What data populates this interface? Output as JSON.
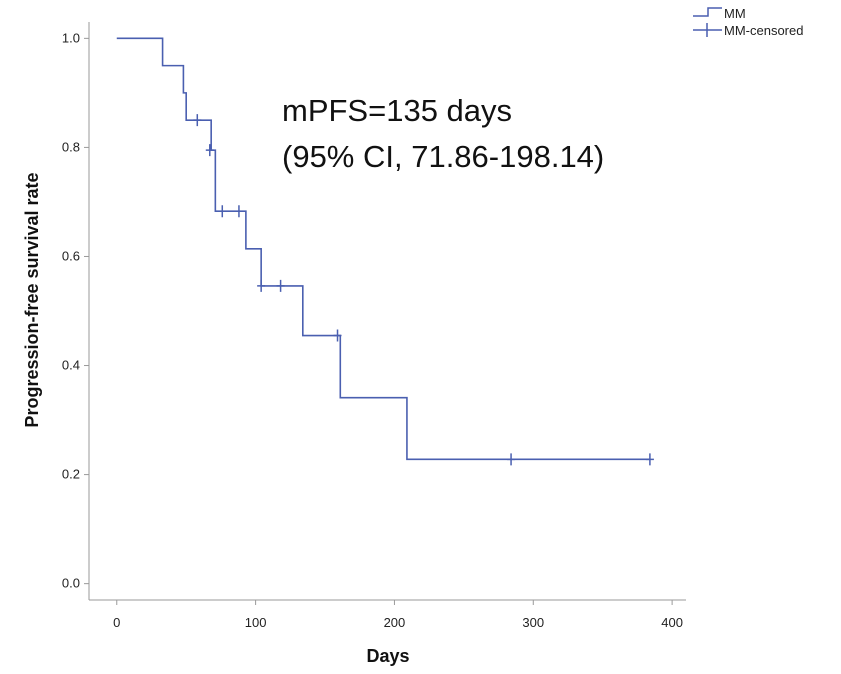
{
  "chart_data": {
    "type": "line",
    "title": "",
    "xlabel": "Days",
    "ylabel": "Progression-free survival rate",
    "xlim": [
      -20,
      410
    ],
    "ylim": [
      -0.03,
      1.03
    ],
    "xticks": [
      0,
      100,
      200,
      300,
      400
    ],
    "yticks": [
      0.0,
      0.2,
      0.4,
      0.6,
      0.8,
      1.0
    ],
    "ytick_labels": [
      "0.0",
      "0.2",
      "0.4",
      "0.6",
      "0.8",
      "1.0"
    ],
    "grid": false,
    "legend_position": "top-right",
    "legend": [
      "MM",
      "MM-censored"
    ],
    "annotation": [
      "mPFS=135 days",
      "(95% CI, 71.86-198.14)"
    ],
    "series": [
      {
        "name": "MM",
        "step_points": [
          {
            "x": 0,
            "y": 1.0
          },
          {
            "x": 33,
            "y": 0.95
          },
          {
            "x": 48,
            "y": 0.9
          },
          {
            "x": 50,
            "y": 0.85
          },
          {
            "x": 68,
            "y": 0.795
          },
          {
            "x": 71,
            "y": 0.683
          },
          {
            "x": 93,
            "y": 0.614
          },
          {
            "x": 104,
            "y": 0.546
          },
          {
            "x": 134,
            "y": 0.455
          },
          {
            "x": 161,
            "y": 0.341
          },
          {
            "x": 209,
            "y": 0.228
          },
          {
            "x": 384,
            "y": 0.228
          }
        ]
      },
      {
        "name": "MM-censored",
        "points": [
          {
            "x": 58,
            "y": 0.85
          },
          {
            "x": 67,
            "y": 0.795
          },
          {
            "x": 76,
            "y": 0.683
          },
          {
            "x": 88,
            "y": 0.683
          },
          {
            "x": 104,
            "y": 0.546
          },
          {
            "x": 118,
            "y": 0.546
          },
          {
            "x": 159,
            "y": 0.455
          },
          {
            "x": 284,
            "y": 0.228
          },
          {
            "x": 384,
            "y": 0.228
          }
        ]
      }
    ],
    "colors": {
      "line": "#4a5fb0",
      "axis": "#9a9a9a"
    }
  }
}
